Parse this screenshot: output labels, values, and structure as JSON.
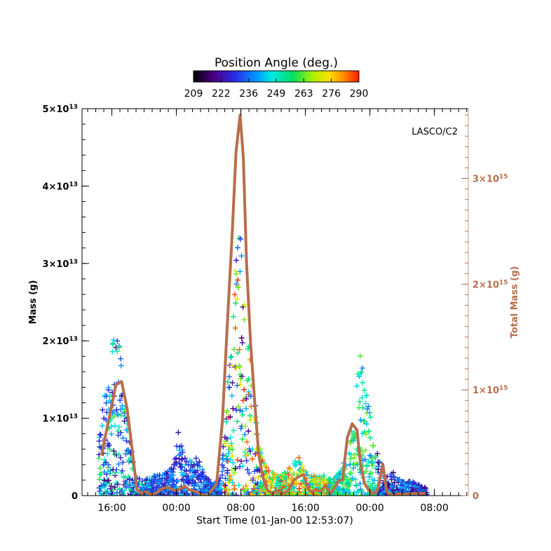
{
  "chart_data": {
    "type": "scatter",
    "colorbar": {
      "title": "Position Angle (deg.)",
      "tick_labels": [
        "209",
        "222",
        "236",
        "249",
        "263",
        "276",
        "290"
      ],
      "range": [
        209,
        290
      ],
      "colormap": "rainbow (black-purple-blue-cyan-green-yellow-red)"
    },
    "annotation": "LASCO/C2",
    "xlabel": "Start Time (01-Jan-00 12:53:07)",
    "x_tick_labels": [
      "16:00",
      "00:00",
      "08:00",
      "16:00",
      "00:00",
      "08:00"
    ],
    "x_tick_hours": [
      3.1,
      11.1,
      19.1,
      27.1,
      35.1,
      43.1
    ],
    "xlim_hours": [
      -0.6,
      47.3
    ],
    "ylabel": "Mass (g)",
    "y_ticks": [
      {
        "value": 0,
        "base": "0",
        "exp": ""
      },
      {
        "value": 10000000000000.0,
        "base": "1×10",
        "exp": "13"
      },
      {
        "value": 20000000000000.0,
        "base": "2×10",
        "exp": "13"
      },
      {
        "value": 30000000000000.0,
        "base": "3×10",
        "exp": "13"
      },
      {
        "value": 40000000000000.0,
        "base": "4×10",
        "exp": "13"
      },
      {
        "value": 50000000000000.0,
        "base": "5×10",
        "exp": "13"
      }
    ],
    "ylim": [
      0,
      50000000000000.0
    ],
    "y2label": "Total Mass (g)",
    "y2_ticks": [
      {
        "value": 0,
        "base": "0",
        "exp": ""
      },
      {
        "value": 1000000000000000.0,
        "base": "1×10",
        "exp": "15"
      },
      {
        "value": 2000000000000000.0,
        "base": "2×10",
        "exp": "15"
      },
      {
        "value": 3000000000000000.0,
        "base": "3×10",
        "exp": "15"
      }
    ],
    "y2lim": [
      0,
      3660000000000000.0
    ],
    "series": [
      {
        "kind": "line",
        "axis": "y2",
        "hours": [
          1.8,
          2.4,
          3.0,
          3.6,
          4.3,
          5.0,
          5.6,
          6.2,
          6.8,
          7.3,
          7.8,
          8.5,
          9.2,
          10.0,
          10.8,
          11.5,
          12.1,
          12.8,
          13.5,
          14.2,
          14.9,
          15.5,
          16.1,
          16.8,
          17.4,
          18.0,
          18.5,
          19.0,
          19.4,
          19.8,
          20.3,
          20.8,
          21.3,
          21.8,
          22.4,
          23.0,
          23.6,
          24.3,
          25.0,
          25.7,
          26.3,
          26.9,
          27.4,
          27.9,
          28.4,
          29.0,
          29.6,
          30.2,
          30.7,
          31.2,
          31.7,
          32.3,
          32.9,
          33.5,
          33.9,
          34.4,
          34.9,
          35.4,
          36.0,
          36.7,
          37.2,
          37.7,
          38.1,
          38.6,
          39.2,
          40.0,
          41.0,
          42.0
        ],
        "values": [
          380000000000000.0,
          600000000000000.0,
          820000000000000.0,
          1050000000000000.0,
          1080000000000000.0,
          820000000000000.0,
          450000000000000.0,
          60000000000000.0,
          20000000000000.0,
          40000000000000.0,
          10000000000000.0,
          20000000000000.0,
          60000000000000.0,
          80000000000000.0,
          50000000000000.0,
          60000000000000.0,
          90000000000000.0,
          50000000000000.0,
          40000000000000.0,
          10000000000000.0,
          0.0,
          50000000000000.0,
          120000000000000.0,
          700000000000000.0,
          1600000000000000.0,
          2450000000000000.0,
          3250000000000000.0,
          3600000000000000.0,
          3200000000000000.0,
          2200000000000000.0,
          1450000000000000.0,
          900000000000000.0,
          400000000000000.0,
          180000000000000.0,
          50000000000000.0,
          20000000000000.0,
          50000000000000.0,
          20000000000000.0,
          50000000000000.0,
          150000000000000.0,
          180000000000000.0,
          200000000000000.0,
          70000000000000.0,
          30000000000000.0,
          60000000000000.0,
          40000000000000.0,
          100000000000000.0,
          20000000000000.0,
          70000000000000.0,
          140000000000000.0,
          150000000000000.0,
          550000000000000.0,
          680000000000000.0,
          620000000000000.0,
          320000000000000.0,
          120000000000000.0,
          60000000000000.0,
          20000000000000.0,
          40000000000000.0,
          300000000000000.0,
          30000000000000.0,
          10000000000000.0,
          0.0,
          20000000000000.0,
          10000000000000.0,
          20000000000000.0,
          20000000000000.0,
          20000000000000.0
        ],
        "color": "#b86e4a"
      },
      {
        "kind": "scatter_envelope",
        "axis": "y",
        "description": "Plus markers per mass measurement; envelope of maximum mass per time",
        "hours": [
          1.5,
          2.2,
          3.0,
          3.5,
          4.1,
          4.7,
          5.3,
          6.0,
          7.0,
          8.0,
          9.0,
          10.0,
          10.8,
          11.3,
          12.0,
          13.0,
          13.8,
          14.5,
          15.5,
          16.5,
          17.2,
          17.8,
          18.3,
          18.8,
          19.2,
          19.6,
          20.0,
          20.6,
          21.2,
          22.0,
          23.0,
          24.0,
          25.0,
          25.7,
          26.3,
          27.0,
          27.7,
          28.5,
          29.5,
          30.5,
          31.5,
          32.0,
          32.5,
          33.2,
          34.0,
          34.8,
          35.5,
          36.3,
          37.0,
          38.0,
          39.0,
          40.0,
          41.0,
          42.0
        ],
        "max_values": [
          10000000000000.0,
          13000000000000.0,
          18000000000000.0,
          22500000000000.0,
          20000000000000.0,
          13500000000000.0,
          8000000000000.0,
          3000000000000.0,
          2000000000000.0,
          2500000000000.0,
          3000000000000.0,
          3000000000000.0,
          4000000000000.0,
          9000000000000.0,
          5500000000000.0,
          5000000000000.0,
          5000000000000.0,
          3000000000000.0,
          1500000000000.0,
          2000000000000.0,
          11000000000000.0,
          21000000000000.0,
          30000000000000.0,
          35000000000000.0,
          34000000000000.0,
          26000000000000.0,
          22000000000000.0,
          16000000000000.0,
          8000000000000.0,
          4500000000000.0,
          3000000000000.0,
          2500000000000.0,
          3500000000000.0,
          4500000000000.0,
          5000000000000.0,
          3500000000000.0,
          2500000000000.0,
          2500000000000.0,
          3000000000000.0,
          2000000000000.0,
          3500000000000.0,
          4500000000000.0,
          6000000000000.0,
          12000000000000.0,
          19000000000000.0,
          17000000000000.0,
          7500000000000.0,
          4500000000000.0,
          2500000000000.0,
          3000000000000.0,
          2000000000000.0,
          2000000000000.0,
          1500000000000.0,
          1000000000000.0
        ]
      }
    ],
    "axis_colors": {
      "left": "#000000",
      "right": "#b86e4a",
      "frame_right": "#c89a86"
    }
  }
}
